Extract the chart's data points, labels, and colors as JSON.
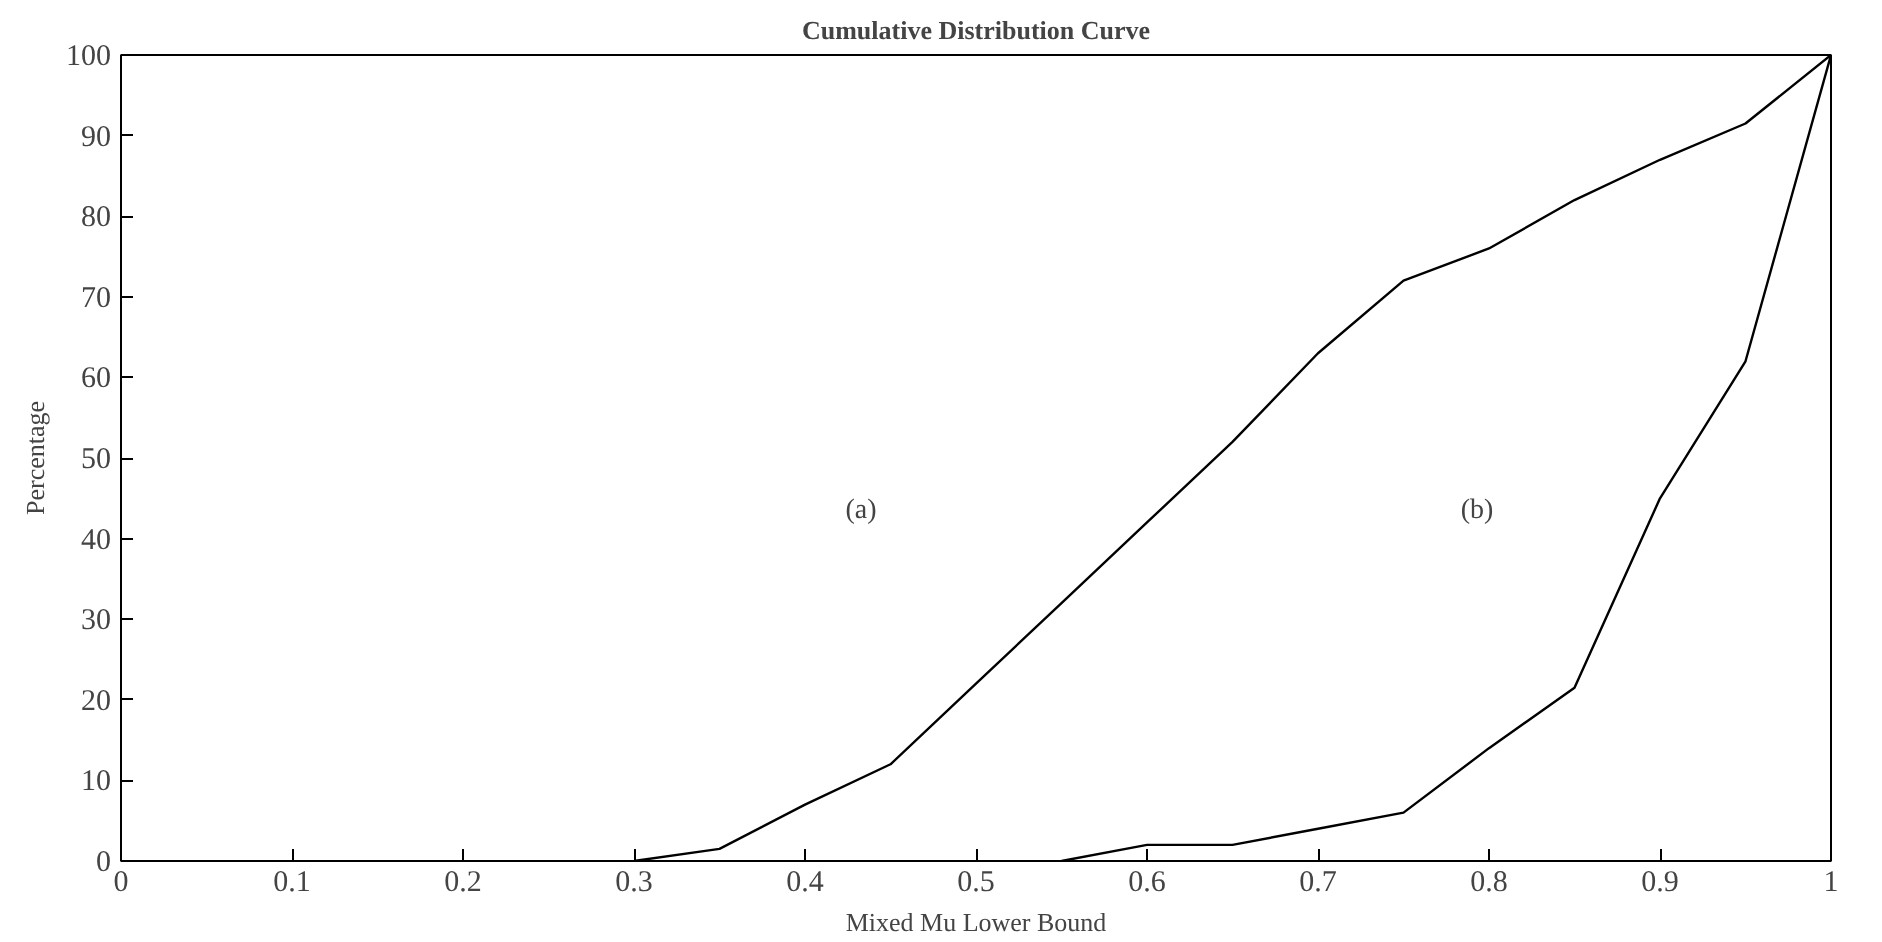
{
  "chart_data": {
    "type": "line",
    "title": "Cumulative Distribution Curve",
    "xlabel": "Mixed Mu Lower Bound",
    "ylabel": "Percentage",
    "xlim": [
      0,
      1
    ],
    "ylim": [
      0,
      100
    ],
    "xticks": [
      0,
      0.1,
      0.2,
      0.3,
      0.4,
      0.5,
      0.6,
      0.7,
      0.8,
      0.9,
      1
    ],
    "yticks": [
      0,
      10,
      20,
      30,
      40,
      50,
      60,
      70,
      80,
      90,
      100
    ],
    "grid": false,
    "marker": "none",
    "line_style": "solid",
    "series": [
      {
        "color": "#000000",
        "x": [
          0.3,
          0.35,
          0.4,
          0.45,
          0.5,
          0.55,
          0.6,
          0.65,
          0.7,
          0.75,
          0.8,
          0.85,
          0.9,
          0.95,
          1
        ],
        "values": [
          0,
          1.5,
          7,
          12,
          22,
          32,
          42,
          52,
          63,
          72,
          76,
          82,
          87,
          91.5,
          100
        ]
      },
      {
        "color": "#000000",
        "x": [
          0.55,
          0.6,
          0.65,
          0.7,
          0.75,
          0.8,
          0.85,
          0.9,
          0.95,
          1
        ],
        "values": [
          0,
          2,
          2,
          4,
          6,
          14,
          21.5,
          45,
          62,
          100
        ]
      }
    ],
    "annotations": [
      "(a)",
      "(b)"
    ]
  }
}
